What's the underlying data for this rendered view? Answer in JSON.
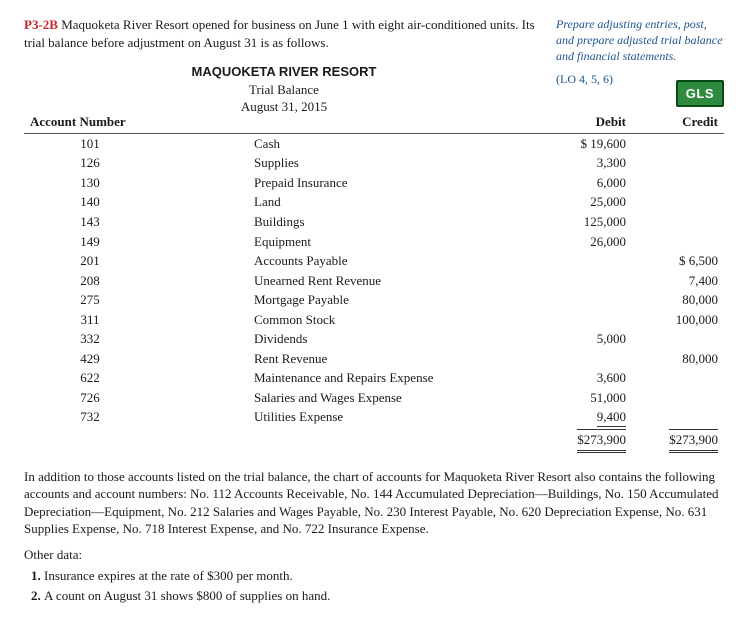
{
  "problem": {
    "label": "P3-2B",
    "intro": "Maquoketa River Resort opened for business on June 1 with eight air-conditioned units. Its trial balance before adjustment on August 31 is as follows."
  },
  "side": {
    "note": "Prepare adjusting entries, post, and prepare adjusted trial balance and financial statements.",
    "lo": "(LO 4, 5, 6)"
  },
  "tb_header": {
    "name": "MAQUOKETA RIVER RESORT",
    "title": "Trial Balance",
    "date": "August 31, 2015"
  },
  "gls": "GLS",
  "columns": {
    "acctnum": "Account Number",
    "debit": "Debit",
    "credit": "Credit"
  },
  "rows": [
    {
      "n": "101",
      "name": "Cash",
      "d": "$ 19,600",
      "c": ""
    },
    {
      "n": "126",
      "name": "Supplies",
      "d": "3,300",
      "c": ""
    },
    {
      "n": "130",
      "name": "Prepaid Insurance",
      "d": "6,000",
      "c": ""
    },
    {
      "n": "140",
      "name": "Land",
      "d": "25,000",
      "c": ""
    },
    {
      "n": "143",
      "name": "Buildings",
      "d": "125,000",
      "c": ""
    },
    {
      "n": "149",
      "name": "Equipment",
      "d": "26,000",
      "c": ""
    },
    {
      "n": "201",
      "name": "Accounts Payable",
      "d": "",
      "c": "$   6,500"
    },
    {
      "n": "208",
      "name": "Unearned Rent Revenue",
      "d": "",
      "c": "7,400"
    },
    {
      "n": "275",
      "name": "Mortgage Payable",
      "d": "",
      "c": "80,000"
    },
    {
      "n": "311",
      "name": "Common Stock",
      "d": "",
      "c": "100,000"
    },
    {
      "n": "332",
      "name": "Dividends",
      "d": "5,000",
      "c": ""
    },
    {
      "n": "429",
      "name": "Rent Revenue",
      "d": "",
      "c": "80,000"
    },
    {
      "n": "622",
      "name": "Maintenance and Repairs Expense",
      "d": "3,600",
      "c": ""
    },
    {
      "n": "726",
      "name": "Salaries and Wages Expense",
      "d": "51,000",
      "c": ""
    },
    {
      "n": "732",
      "name": "Utilities Expense",
      "d": "9,400",
      "c": ""
    }
  ],
  "totals": {
    "d": "$273,900",
    "c": "$273,900"
  },
  "addl": "In addition to those accounts listed on the trial balance, the chart of accounts for Maquoketa River Resort also contains the following accounts and account numbers: No. 112 Accounts Receivable, No. 144 Accumulated Depreciation—Buildings, No. 150 Accumulated Depreciation—Equipment, No. 212 Salaries and Wages Payable, No. 230 Interest Payable, No. 620 Depreciation Expense, No. 631 Supplies Expense, No. 718 Interest Expense, and No. 722 Insurance Expense.",
  "other_label": "Other data:",
  "other": [
    "Insurance expires at the rate of $300 per month.",
    "A count on August 31 shows $800 of supplies on hand."
  ]
}
